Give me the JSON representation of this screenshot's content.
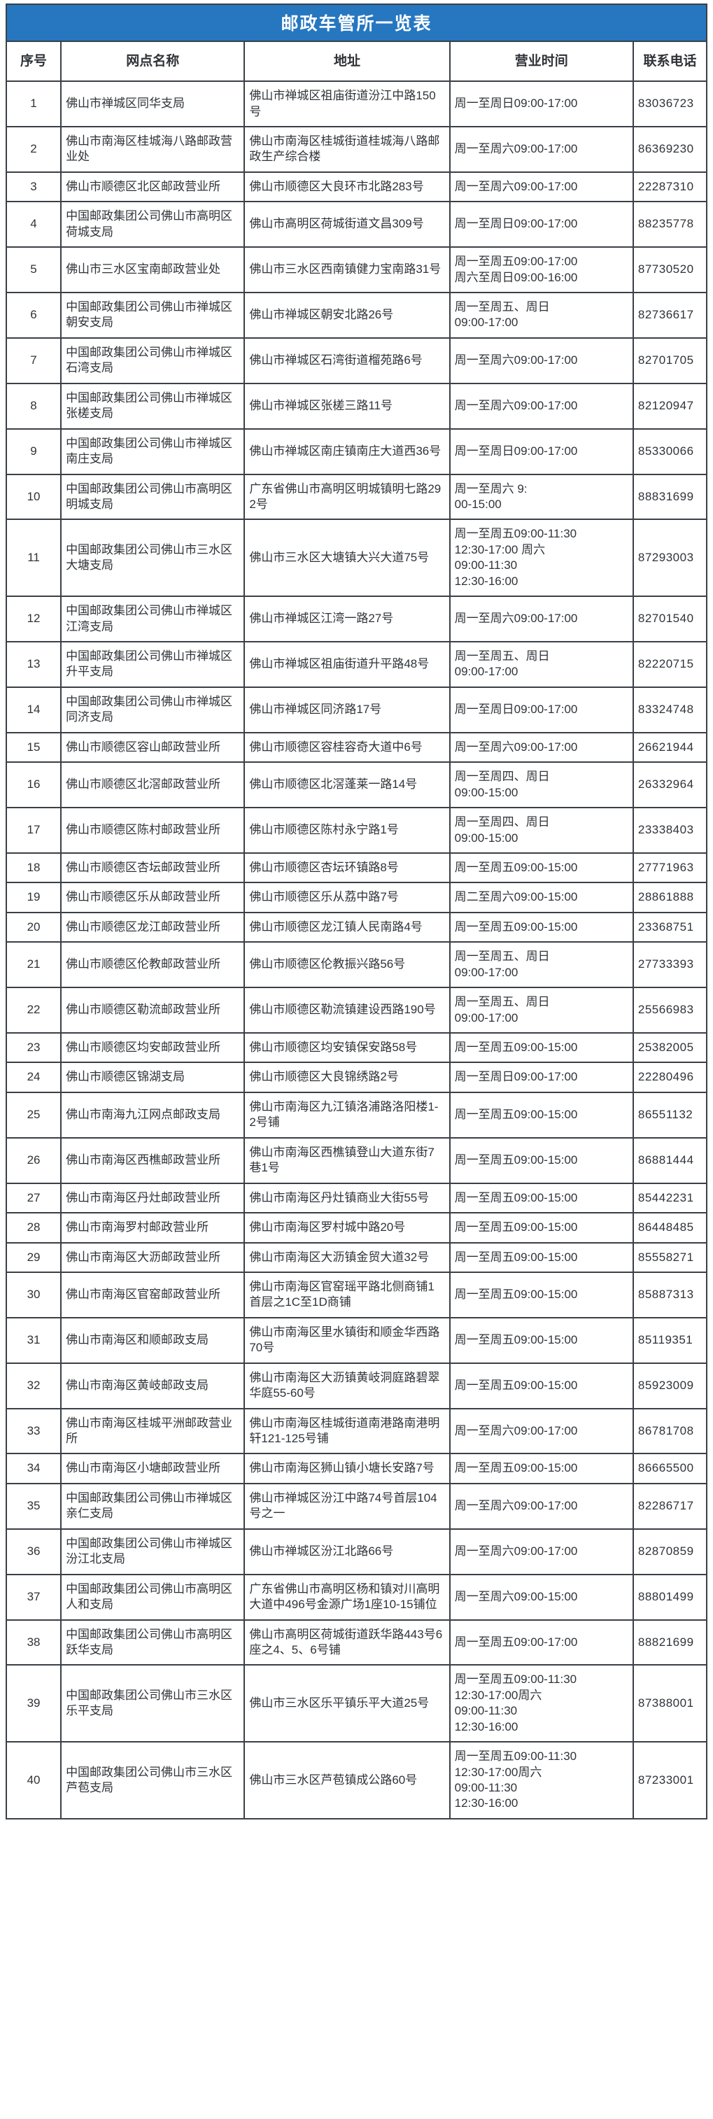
{
  "title": "邮政车管所一览表",
  "colors": {
    "header_bg": "#2677c0",
    "header_text": "#ffffff",
    "border": "#3b4046",
    "text": "#2f3338"
  },
  "table": {
    "columns": [
      "序号",
      "网点名称",
      "地址",
      "营业时间",
      "联系电话"
    ],
    "rows": [
      {
        "no": "1",
        "name": "佛山市禅城区同华支局",
        "address": "佛山市禅城区祖庙街道汾江中路150号",
        "hours": "周一至周日09:00-17:00",
        "phone": "83036723"
      },
      {
        "no": "2",
        "name": "佛山市南海区桂城海八路邮政营业处",
        "address": "佛山市南海区桂城街道桂城海八路邮政生产综合楼",
        "hours": "周一至周六09:00-17:00",
        "phone": "86369230"
      },
      {
        "no": "3",
        "name": "佛山市顺德区北区邮政营业所",
        "address": "佛山市顺德区大良环市北路283号",
        "hours": "周一至周六09:00-17:00",
        "phone": "22287310"
      },
      {
        "no": "4",
        "name": "中国邮政集团公司佛山市高明区荷城支局",
        "address": "佛山市高明区荷城街道文昌309号",
        "hours": "周一至周日09:00-17:00",
        "phone": "88235778"
      },
      {
        "no": "5",
        "name": "佛山市三水区宝南邮政营业处",
        "address": "佛山市三水区西南镇健力宝南路31号",
        "hours": "周一至周五09:00-17:00\n周六至周日09:00-16:00",
        "phone": "87730520"
      },
      {
        "no": "6",
        "name": "中国邮政集团公司佛山市禅城区朝安支局",
        "address": "佛山市禅城区朝安北路26号",
        "hours": "周一至周五、周日\n09:00-17:00",
        "phone": "82736617"
      },
      {
        "no": "7",
        "name": "中国邮政集团公司佛山市禅城区石湾支局",
        "address": "佛山市禅城区石湾街道榴苑路6号",
        "hours": "周一至周六09:00-17:00",
        "phone": "82701705"
      },
      {
        "no": "8",
        "name": "中国邮政集团公司佛山市禅城区张槎支局",
        "address": "佛山市禅城区张槎三路11号",
        "hours": "周一至周六09:00-17:00",
        "phone": "82120947"
      },
      {
        "no": "9",
        "name": "中国邮政集团公司佛山市禅城区南庄支局",
        "address": "佛山市禅城区南庄镇南庄大道西36号",
        "hours": "周一至周日09:00-17:00",
        "phone": "85330066"
      },
      {
        "no": "10",
        "name": "中国邮政集团公司佛山市高明区明城支局",
        "address": "广东省佛山市高明区明城镇明七路292号",
        "hours": "周一至周六 9:\n00-15:00",
        "phone": "88831699"
      },
      {
        "no": "11",
        "name": "中国邮政集团公司佛山市三水区大塘支局",
        "address": "佛山市三水区大塘镇大兴大道75号",
        "hours": "周一至周五09:00-11:30\n12:30-17:00 周六\n09:00-11:30\n12:30-16:00",
        "phone": "87293003"
      },
      {
        "no": "12",
        "name": "中国邮政集团公司佛山市禅城区江湾支局",
        "address": "佛山市禅城区江湾一路27号",
        "hours": "周一至周六09:00-17:00",
        "phone": "82701540"
      },
      {
        "no": "13",
        "name": "中国邮政集团公司佛山市禅城区升平支局",
        "address": "佛山市禅城区祖庙街道升平路48号",
        "hours": "周一至周五、周日\n09:00-17:00",
        "phone": "82220715"
      },
      {
        "no": "14",
        "name": "中国邮政集团公司佛山市禅城区同济支局",
        "address": "佛山市禅城区同济路17号",
        "hours": "周一至周日09:00-17:00",
        "phone": "83324748"
      },
      {
        "no": "15",
        "name": "佛山市顺德区容山邮政营业所",
        "address": "佛山市顺德区容桂容奇大道中6号",
        "hours": "周一至周六09:00-17:00",
        "phone": "26621944"
      },
      {
        "no": "16",
        "name": "佛山市顺德区北滘邮政营业所",
        "address": "佛山市顺德区北滘蓬莱一路14号",
        "hours": "周一至周四、周日\n09:00-15:00",
        "phone": "26332964"
      },
      {
        "no": "17",
        "name": "佛山市顺德区陈村邮政营业所",
        "address": "佛山市顺德区陈村永宁路1号",
        "hours": "周一至周四、周日\n09:00-15:00",
        "phone": "23338403"
      },
      {
        "no": "18",
        "name": "佛山市顺德区杏坛邮政营业所",
        "address": "佛山市顺德区杏坛环镇路8号",
        "hours": "周一至周五09:00-15:00",
        "phone": "27771963"
      },
      {
        "no": "19",
        "name": "佛山市顺德区乐从邮政营业所",
        "address": "佛山市顺德区乐从荔中路7号",
        "hours": "周二至周六09:00-15:00",
        "phone": "28861888"
      },
      {
        "no": "20",
        "name": "佛山市顺德区龙江邮政营业所",
        "address": "佛山市顺德区龙江镇人民南路4号",
        "hours": "周一至周五09:00-15:00",
        "phone": "23368751"
      },
      {
        "no": "21",
        "name": "佛山市顺德区伦教邮政营业所",
        "address": "佛山市顺德区伦教振兴路56号",
        "hours": "周一至周五、周日\n09:00-17:00",
        "phone": "27733393"
      },
      {
        "no": "22",
        "name": "佛山市顺德区勒流邮政营业所",
        "address": "佛山市顺德区勒流镇建设西路190号",
        "hours": "周一至周五、周日\n09:00-17:00",
        "phone": "25566983"
      },
      {
        "no": "23",
        "name": "佛山市顺德区均安邮政营业所",
        "address": "佛山市顺德区均安镇保安路58号",
        "hours": "周一至周五09:00-15:00",
        "phone": "25382005"
      },
      {
        "no": "24",
        "name": "佛山市顺德区锦湖支局",
        "address": "佛山市顺德区大良锦绣路2号",
        "hours": "周一至周日09:00-17:00",
        "phone": "22280496"
      },
      {
        "no": "25",
        "name": "佛山市南海九江网点邮政支局",
        "address": "佛山市南海区九江镇洛浦路洛阳楼1-2号铺",
        "hours": "周一至周五09:00-15:00",
        "phone": "86551132"
      },
      {
        "no": "26",
        "name": "佛山市南海区西樵邮政营业所",
        "address": "佛山市南海区西樵镇登山大道东街7巷1号",
        "hours": "周一至周五09:00-15:00",
        "phone": "86881444"
      },
      {
        "no": "27",
        "name": "佛山市南海区丹灶邮政营业所",
        "address": "佛山市南海区丹灶镇商业大街55号",
        "hours": "周一至周五09:00-15:00",
        "phone": "85442231"
      },
      {
        "no": "28",
        "name": "佛山市南海罗村邮政营业所",
        "address": "佛山市南海区罗村城中路20号",
        "hours": "周一至周五09:00-15:00",
        "phone": "86448485"
      },
      {
        "no": "29",
        "name": "佛山市南海区大沥邮政营业所",
        "address": "佛山市南海区大沥镇金贸大道32号",
        "hours": "周一至周五09:00-15:00",
        "phone": "85558271"
      },
      {
        "no": "30",
        "name": "佛山市南海区官窑邮政营业所",
        "address": "佛山市南海区官窑瑶平路北侧商铺1首层之1C至1D商铺",
        "hours": "周一至周五09:00-15:00",
        "phone": "85887313"
      },
      {
        "no": "31",
        "name": "佛山市南海区和顺邮政支局",
        "address": "佛山市南海区里水镇街和顺金华西路70号",
        "hours": "周一至周五09:00-15:00",
        "phone": "85119351"
      },
      {
        "no": "32",
        "name": "佛山市南海区黄岐邮政支局",
        "address": "佛山市南海区大沥镇黄岐洞庭路碧翠华庭55-60号",
        "hours": "周一至周五09:00-15:00",
        "phone": "85923009"
      },
      {
        "no": "33",
        "name": "佛山市南海区桂城平洲邮政营业所",
        "address": "佛山市南海区桂城街道南港路南港明轩121-125号铺",
        "hours": "周一至周六09:00-17:00",
        "phone": "86781708"
      },
      {
        "no": "34",
        "name": "佛山市南海区小塘邮政营业所",
        "address": "佛山市南海区狮山镇小塘长安路7号",
        "hours": "周一至周五09:00-15:00",
        "phone": "86665500"
      },
      {
        "no": "35",
        "name": "中国邮政集团公司佛山市禅城区亲仁支局",
        "address": "佛山市禅城区汾江中路74号首层104号之一",
        "hours": "周一至周六09:00-17:00",
        "phone": "82286717"
      },
      {
        "no": "36",
        "name": "中国邮政集团公司佛山市禅城区汾江北支局",
        "address": "佛山市禅城区汾江北路66号",
        "hours": "周一至周六09:00-17:00",
        "phone": "82870859"
      },
      {
        "no": "37",
        "name": "中国邮政集团公司佛山市高明区人和支局",
        "address": "广东省佛山市高明区杨和镇对川高明大道中496号金源广场1座10-15铺位",
        "hours": "周一至周六09:00-15:00",
        "phone": "88801499"
      },
      {
        "no": "38",
        "name": "中国邮政集团公司佛山市高明区跃华支局",
        "address": "佛山市高明区荷城街道跃华路443号6座之4、5、6号铺",
        "hours": "周一至周五09:00-17:00",
        "phone": "88821699"
      },
      {
        "no": "39",
        "name": "中国邮政集团公司佛山市三水区乐平支局",
        "address": "佛山市三水区乐平镇乐平大道25号",
        "hours": "周一至周五09:00-11:30\n12:30-17:00周六\n09:00-11:30\n12:30-16:00",
        "phone": "87388001"
      },
      {
        "no": "40",
        "name": "中国邮政集团公司佛山市三水区芦苞支局",
        "address": "佛山市三水区芦苞镇成公路60号",
        "hours": "周一至周五09:00-11:30\n12:30-17:00周六\n09:00-11:30\n12:30-16:00",
        "phone": "87233001"
      }
    ]
  }
}
